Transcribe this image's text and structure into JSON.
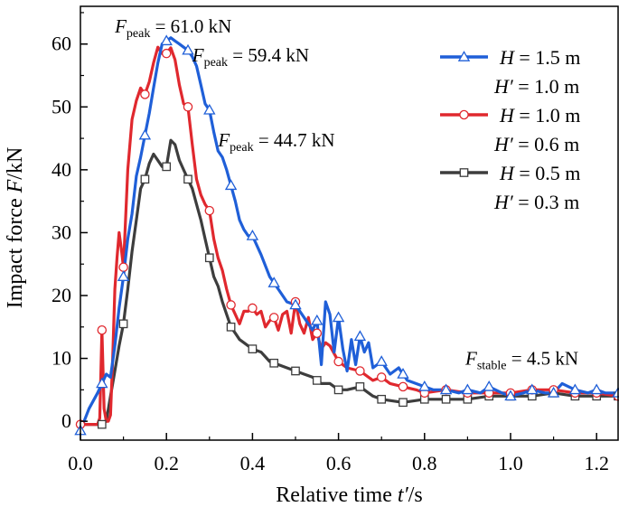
{
  "chart_data": {
    "type": "line",
    "title": "",
    "xlabel": {
      "prefix": "Relative time ",
      "var": "t′",
      "suffix": "/s"
    },
    "ylabel": {
      "prefix": "Impact force ",
      "var": "F",
      "suffix": "/kN"
    },
    "xlim": [
      0.0,
      1.25
    ],
    "ylim": [
      -3,
      66
    ],
    "xticks": [
      0.0,
      0.2,
      0.4,
      0.6,
      0.8,
      1.0,
      1.2
    ],
    "xtick_labels": [
      "0.0",
      "0.2",
      "0.4",
      "0.6",
      "0.8",
      "1.0",
      "1.2"
    ],
    "yticks": [
      0,
      10,
      20,
      30,
      40,
      50,
      60
    ],
    "ytick_labels": [
      "0",
      "10",
      "20",
      "30",
      "40",
      "50",
      "60"
    ],
    "grid": false,
    "legend_position": "top-right",
    "series": [
      {
        "name": "H = 1.5 m, H′ = 1.0 m",
        "legend_line1": "= 1.5 m",
        "legend_line2": "= 1.0 m",
        "color": "#1f5fd8",
        "marker": "triangle",
        "x": [
          0.0,
          0.02,
          0.04,
          0.05,
          0.06,
          0.07,
          0.08,
          0.09,
          0.1,
          0.11,
          0.12,
          0.13,
          0.14,
          0.15,
          0.16,
          0.17,
          0.18,
          0.19,
          0.2,
          0.21,
          0.22,
          0.23,
          0.24,
          0.25,
          0.26,
          0.27,
          0.28,
          0.29,
          0.3,
          0.31,
          0.32,
          0.33,
          0.34,
          0.35,
          0.36,
          0.37,
          0.38,
          0.39,
          0.4,
          0.42,
          0.44,
          0.46,
          0.48,
          0.5,
          0.52,
          0.54,
          0.55,
          0.56,
          0.57,
          0.58,
          0.59,
          0.6,
          0.61,
          0.62,
          0.63,
          0.64,
          0.65,
          0.66,
          0.67,
          0.68,
          0.7,
          0.72,
          0.74,
          0.75,
          0.76,
          0.78,
          0.8,
          0.82,
          0.85,
          0.88,
          0.9,
          0.93,
          0.95,
          0.98,
          1.0,
          1.03,
          1.05,
          1.08,
          1.1,
          1.12,
          1.15,
          1.18,
          1.2,
          1.22,
          1.25
        ],
        "y": [
          -1.5,
          2.0,
          4.5,
          6.0,
          7.5,
          7.0,
          12.0,
          18.0,
          23.0,
          29.0,
          33.0,
          39.0,
          42.0,
          45.5,
          49.0,
          53.0,
          57.0,
          60.0,
          60.5,
          61.0,
          60.5,
          60.0,
          59.5,
          59.0,
          58.0,
          56.5,
          53.5,
          50.5,
          49.5,
          46.0,
          43.0,
          42.0,
          40.0,
          37.5,
          35.0,
          32.0,
          30.5,
          29.5,
          29.5,
          26.5,
          23.0,
          21.0,
          19.0,
          18.5,
          16.5,
          14.5,
          16.0,
          9.0,
          19.0,
          17.0,
          11.0,
          16.5,
          11.5,
          8.0,
          13.0,
          9.0,
          13.5,
          11.0,
          12.5,
          8.5,
          9.5,
          7.5,
          8.5,
          7.5,
          6.5,
          6.0,
          5.5,
          5.0,
          5.0,
          4.5,
          5.0,
          4.5,
          5.5,
          4.5,
          4.0,
          4.5,
          5.0,
          4.5,
          4.5,
          6.0,
          5.0,
          4.5,
          5.0,
          4.5,
          4.5
        ],
        "markers_at": [
          0.0,
          0.05,
          0.1,
          0.15,
          0.2,
          0.25,
          0.3,
          0.35,
          0.4,
          0.45,
          0.5,
          0.55,
          0.6,
          0.65,
          0.7,
          0.75,
          0.8,
          0.85,
          0.9,
          0.95,
          1.0,
          1.05,
          1.1,
          1.15,
          1.2,
          1.25
        ]
      },
      {
        "name": "H = 1.0 m, H′ = 0.6 m",
        "legend_line1": "= 1.0 m",
        "legend_line2": "= 0.6 m",
        "color": "#e0282e",
        "marker": "circle",
        "x": [
          0.0,
          0.02,
          0.04,
          0.045,
          0.05,
          0.055,
          0.06,
          0.065,
          0.07,
          0.075,
          0.08,
          0.085,
          0.09,
          0.095,
          0.1,
          0.11,
          0.12,
          0.13,
          0.14,
          0.15,
          0.16,
          0.17,
          0.18,
          0.19,
          0.2,
          0.21,
          0.22,
          0.23,
          0.24,
          0.25,
          0.26,
          0.27,
          0.28,
          0.29,
          0.3,
          0.31,
          0.32,
          0.33,
          0.34,
          0.35,
          0.36,
          0.37,
          0.38,
          0.39,
          0.4,
          0.41,
          0.42,
          0.43,
          0.44,
          0.45,
          0.46,
          0.47,
          0.48,
          0.49,
          0.5,
          0.51,
          0.52,
          0.53,
          0.54,
          0.55,
          0.56,
          0.57,
          0.58,
          0.6,
          0.62,
          0.65,
          0.68,
          0.7,
          0.72,
          0.75,
          0.78,
          0.8,
          0.85,
          0.9,
          0.95,
          1.0,
          1.05,
          1.1,
          1.15,
          1.2,
          1.25
        ],
        "y": [
          -0.5,
          -0.5,
          -0.5,
          0.5,
          14.5,
          2.0,
          0.0,
          0.0,
          1.0,
          10.0,
          21.0,
          26.0,
          30.0,
          27.5,
          24.5,
          40.0,
          48.0,
          51.0,
          53.0,
          52.0,
          54.0,
          57.0,
          59.5,
          58.5,
          58.5,
          59.4,
          57.5,
          53.5,
          50.5,
          50.0,
          44.0,
          38.5,
          36.0,
          34.5,
          33.5,
          29.0,
          26.0,
          24.0,
          21.0,
          18.5,
          17.0,
          15.5,
          17.5,
          17.5,
          18.0,
          17.0,
          17.5,
          15.0,
          16.0,
          16.5,
          14.5,
          17.0,
          17.5,
          14.0,
          19.0,
          15.5,
          14.0,
          16.5,
          13.0,
          14.0,
          11.5,
          12.5,
          12.0,
          9.5,
          8.5,
          8.0,
          6.5,
          7.0,
          6.0,
          5.5,
          5.0,
          4.5,
          5.0,
          4.5,
          4.5,
          4.5,
          5.0,
          5.0,
          4.5,
          4.5,
          4.0
        ],
        "markers_at": [
          0.0,
          0.05,
          0.1,
          0.15,
          0.2,
          0.25,
          0.3,
          0.35,
          0.4,
          0.45,
          0.5,
          0.55,
          0.6,
          0.65,
          0.7,
          0.75,
          0.8,
          0.85,
          0.9,
          0.95,
          1.0,
          1.05,
          1.1,
          1.15,
          1.2,
          1.25
        ]
      },
      {
        "name": "H = 0.5 m, H′ = 0.3 m",
        "legend_line1": "= 0.5 m",
        "legend_line2": "= 0.3 m",
        "color": "#3d3d3d",
        "marker": "square",
        "x": [
          0.0,
          0.02,
          0.04,
          0.05,
          0.06,
          0.07,
          0.08,
          0.09,
          0.1,
          0.11,
          0.12,
          0.13,
          0.14,
          0.15,
          0.16,
          0.17,
          0.18,
          0.19,
          0.2,
          0.21,
          0.22,
          0.23,
          0.24,
          0.25,
          0.26,
          0.27,
          0.28,
          0.29,
          0.3,
          0.31,
          0.32,
          0.33,
          0.34,
          0.35,
          0.36,
          0.37,
          0.38,
          0.39,
          0.4,
          0.42,
          0.44,
          0.46,
          0.48,
          0.5,
          0.52,
          0.54,
          0.56,
          0.58,
          0.6,
          0.62,
          0.65,
          0.68,
          0.7,
          0.75,
          0.8,
          0.85,
          0.9,
          0.95,
          1.0,
          1.05,
          1.1,
          1.15,
          1.2,
          1.25
        ],
        "y": [
          -0.5,
          -0.5,
          -0.5,
          -0.5,
          0.0,
          4.0,
          8.0,
          12.0,
          15.5,
          21.0,
          27.0,
          32.0,
          37.0,
          38.5,
          41.0,
          42.5,
          41.5,
          40.5,
          40.5,
          44.7,
          44.0,
          41.5,
          40.0,
          38.5,
          37.0,
          34.5,
          32.0,
          29.0,
          26.0,
          23.0,
          21.5,
          19.0,
          17.0,
          15.0,
          14.0,
          13.0,
          12.5,
          12.0,
          11.5,
          11.0,
          9.5,
          9.0,
          8.5,
          8.0,
          7.5,
          7.0,
          6.0,
          6.0,
          5.0,
          5.0,
          5.5,
          4.0,
          3.5,
          3.0,
          3.5,
          3.5,
          3.5,
          4.0,
          4.0,
          4.0,
          4.5,
          4.0,
          4.0,
          4.0
        ],
        "markers_at": [
          0.05,
          0.1,
          0.15,
          0.2,
          0.25,
          0.3,
          0.35,
          0.4,
          0.45,
          0.5,
          0.55,
          0.6,
          0.65,
          0.7,
          0.75,
          0.8,
          0.85,
          0.9,
          0.95,
          1.0,
          1.05,
          1.1,
          1.15,
          1.2,
          1.25
        ]
      }
    ],
    "legend_vars": {
      "h": "H",
      "h_prime": "H′"
    },
    "annotations": [
      {
        "id": "peak1",
        "main": "F",
        "sub": "peak",
        "text": " = 61.0 kN",
        "x": 0.08,
        "y": 61.8
      },
      {
        "id": "peak2",
        "main": "F",
        "sub": "peak",
        "text": " = 59.4 kN",
        "x": 0.26,
        "y": 57.2
      },
      {
        "id": "peak3",
        "main": "F",
        "sub": "peak",
        "text": " = 44.7 kN",
        "x": 0.32,
        "y": 43.7
      },
      {
        "id": "stable",
        "main": "F",
        "sub": "stable",
        "text": " = 4.5 kN",
        "x": 0.895,
        "y": 9.0
      }
    ]
  }
}
